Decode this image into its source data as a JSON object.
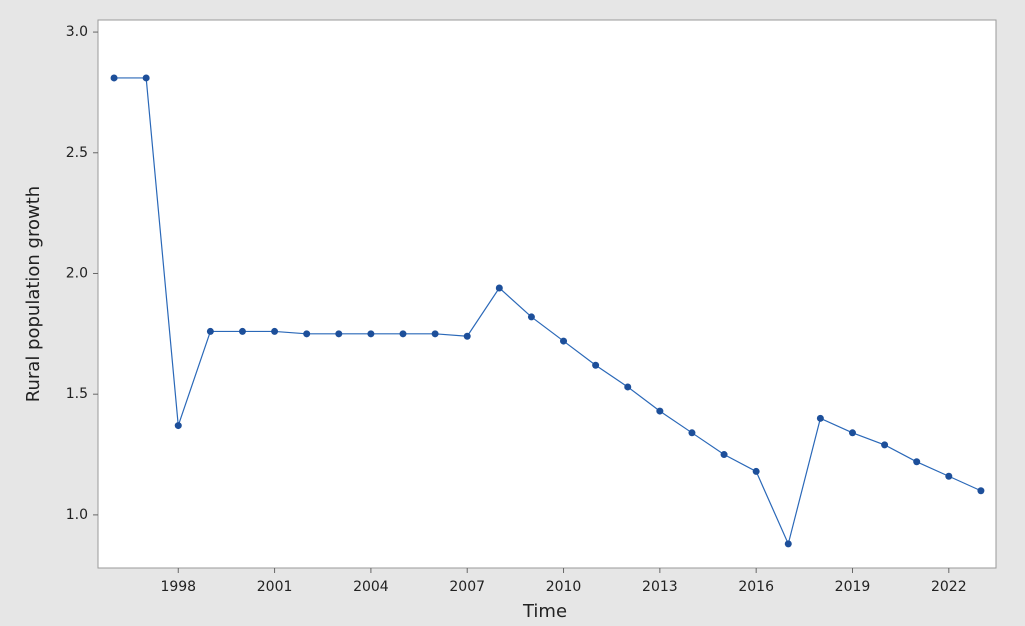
{
  "chart_data": {
    "type": "line",
    "x_label": "Time",
    "y_label": "Rural population growth",
    "x": [
      1996,
      1997,
      1998,
      1999,
      2000,
      2001,
      2002,
      2003,
      2004,
      2005,
      2006,
      2007,
      2008,
      2009,
      2010,
      2011,
      2012,
      2013,
      2014,
      2015,
      2016,
      2017,
      2018,
      2019,
      2020,
      2021,
      2022,
      2023
    ],
    "series": [
      {
        "color": "#2a68b8",
        "values": [
          2.81,
          2.81,
          1.37,
          1.76,
          1.76,
          1.76,
          1.75,
          1.75,
          1.75,
          1.75,
          1.75,
          1.74,
          1.94,
          1.82,
          1.72,
          1.62,
          1.53,
          1.43,
          1.34,
          1.25,
          1.18,
          0.88,
          1.4,
          1.34,
          1.29,
          1.22,
          1.16,
          1.1
        ]
      }
    ],
    "xlim": [
      1995.5,
      2023.47
    ],
    "xticks": [
      1998,
      2001,
      2004,
      2007,
      2010,
      2013,
      2016,
      2019,
      2022
    ],
    "ylim": [
      0.78,
      3.05
    ],
    "yticks": [
      {
        "value": 1,
        "label": "1.0"
      },
      {
        "value": 1.5,
        "label": "1.5"
      },
      {
        "value": 2,
        "label": "2.0"
      },
      {
        "value": 2.5,
        "label": "2.5"
      },
      {
        "value": 3,
        "label": "3.0"
      }
    ]
  }
}
